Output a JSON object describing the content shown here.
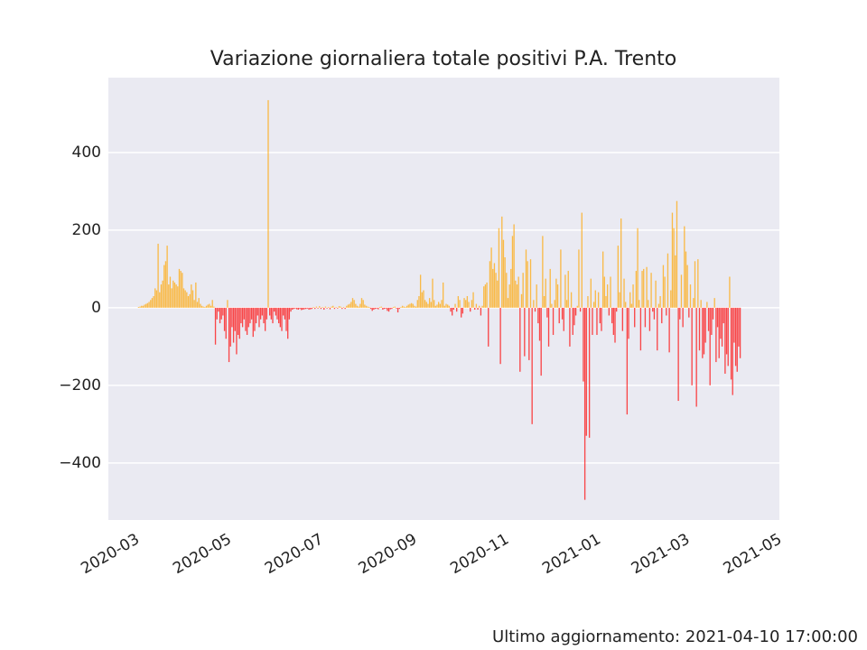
{
  "chart_data": {
    "type": "bar",
    "title": "Variazione giornaliera totale positivi P.A. Trento",
    "footnote": "Ultimo aggiornamento: 2021-04-10 17:00:00",
    "colors": {
      "positive": "#ffa500",
      "negative": "#ff0000"
    },
    "grid": true,
    "xlim": [
      "2020-02-16",
      "2021-05-06"
    ],
    "xticks": [
      {
        "value": "2020-03-01",
        "label": "2020-03"
      },
      {
        "value": "2020-05-01",
        "label": "2020-05"
      },
      {
        "value": "2020-07-01",
        "label": "2020-07"
      },
      {
        "value": "2020-09-01",
        "label": "2020-09"
      },
      {
        "value": "2020-11-01",
        "label": "2020-11"
      },
      {
        "value": "2021-01-01",
        "label": "2021-01"
      },
      {
        "value": "2021-03-01",
        "label": "2021-03"
      },
      {
        "value": "2021-05-01",
        "label": "2021-05"
      }
    ],
    "ylim": [
      -547,
      593
    ],
    "yticks": [
      {
        "value": -400,
        "label": "−400"
      },
      {
        "value": -200,
        "label": "−200"
      },
      0,
      200,
      400
    ],
    "x": [
      "2020-03-07",
      "2020-03-08",
      "2020-03-09",
      "2020-03-10",
      "2020-03-11",
      "2020-03-12",
      "2020-03-13",
      "2020-03-14",
      "2020-03-15",
      "2020-03-16",
      "2020-03-17",
      "2020-03-18",
      "2020-03-19",
      "2020-03-20",
      "2020-03-21",
      "2020-03-22",
      "2020-03-23",
      "2020-03-24",
      "2020-03-25",
      "2020-03-26",
      "2020-03-27",
      "2020-03-28",
      "2020-03-29",
      "2020-03-30",
      "2020-03-31",
      "2020-04-01",
      "2020-04-02",
      "2020-04-03",
      "2020-04-04",
      "2020-04-05",
      "2020-04-06",
      "2020-04-07",
      "2020-04-08",
      "2020-04-09",
      "2020-04-10",
      "2020-04-11",
      "2020-04-12",
      "2020-04-13",
      "2020-04-14",
      "2020-04-15",
      "2020-04-16",
      "2020-04-17",
      "2020-04-18",
      "2020-04-19",
      "2020-04-20",
      "2020-04-21",
      "2020-04-22",
      "2020-04-23",
      "2020-04-24",
      "2020-04-25",
      "2020-04-26",
      "2020-04-27",
      "2020-04-28",
      "2020-04-29",
      "2020-04-30",
      "2020-05-01",
      "2020-05-02",
      "2020-05-03",
      "2020-05-04",
      "2020-05-05",
      "2020-05-06",
      "2020-05-07",
      "2020-05-08",
      "2020-05-09",
      "2020-05-10",
      "2020-05-11",
      "2020-05-12",
      "2020-05-13",
      "2020-05-14",
      "2020-05-15",
      "2020-05-16",
      "2020-05-17",
      "2020-05-18",
      "2020-05-19",
      "2020-05-20",
      "2020-05-21",
      "2020-05-22",
      "2020-05-23",
      "2020-05-24",
      "2020-05-25",
      "2020-05-26",
      "2020-05-27",
      "2020-05-28",
      "2020-05-29",
      "2020-05-30",
      "2020-05-31",
      "2020-06-01",
      "2020-06-02",
      "2020-06-03",
      "2020-06-04",
      "2020-06-05",
      "2020-06-06",
      "2020-06-07",
      "2020-06-08",
      "2020-06-09",
      "2020-06-10",
      "2020-06-11",
      "2020-06-12",
      "2020-06-13",
      "2020-06-14",
      "2020-06-15",
      "2020-06-16",
      "2020-06-17",
      "2020-06-18",
      "2020-06-19",
      "2020-06-20",
      "2020-06-21",
      "2020-06-22",
      "2020-06-23",
      "2020-06-24",
      "2020-06-25",
      "2020-06-26",
      "2020-06-27",
      "2020-06-28",
      "2020-06-29",
      "2020-06-30",
      "2020-07-01",
      "2020-07-02",
      "2020-07-03",
      "2020-07-04",
      "2020-07-05",
      "2020-07-06",
      "2020-07-07",
      "2020-07-08",
      "2020-07-09",
      "2020-07-10",
      "2020-07-11",
      "2020-07-12",
      "2020-07-13",
      "2020-07-14",
      "2020-07-15",
      "2020-07-16",
      "2020-07-17",
      "2020-07-18",
      "2020-07-19",
      "2020-07-20",
      "2020-07-21",
      "2020-07-22",
      "2020-07-23",
      "2020-07-24",
      "2020-07-25",
      "2020-07-26",
      "2020-07-27",
      "2020-07-28",
      "2020-07-29",
      "2020-07-30",
      "2020-07-31",
      "2020-08-01",
      "2020-08-02",
      "2020-08-03",
      "2020-08-04",
      "2020-08-05",
      "2020-08-06",
      "2020-08-07",
      "2020-08-08",
      "2020-08-09",
      "2020-08-10",
      "2020-08-11",
      "2020-08-12",
      "2020-08-13",
      "2020-08-14",
      "2020-08-15",
      "2020-08-16",
      "2020-08-17",
      "2020-08-18",
      "2020-08-19",
      "2020-08-20",
      "2020-08-21",
      "2020-08-22",
      "2020-08-23",
      "2020-08-24",
      "2020-08-25",
      "2020-08-26",
      "2020-08-27",
      "2020-08-28",
      "2020-08-29",
      "2020-08-30",
      "2020-08-31",
      "2020-09-01",
      "2020-09-02",
      "2020-09-03",
      "2020-09-04",
      "2020-09-05",
      "2020-09-06",
      "2020-09-07",
      "2020-09-08",
      "2020-09-09",
      "2020-09-10",
      "2020-09-11",
      "2020-09-12",
      "2020-09-13",
      "2020-09-14",
      "2020-09-15",
      "2020-09-16",
      "2020-09-17",
      "2020-09-18",
      "2020-09-19",
      "2020-09-20",
      "2020-09-21",
      "2020-09-22",
      "2020-09-23",
      "2020-09-24",
      "2020-09-25",
      "2020-09-26",
      "2020-09-27",
      "2020-09-28",
      "2020-09-29",
      "2020-09-30",
      "2020-10-01",
      "2020-10-02",
      "2020-10-03",
      "2020-10-04",
      "2020-10-05",
      "2020-10-06",
      "2020-10-07",
      "2020-10-08",
      "2020-10-09",
      "2020-10-10",
      "2020-10-11",
      "2020-10-12",
      "2020-10-13",
      "2020-10-14",
      "2020-10-15",
      "2020-10-16",
      "2020-10-17",
      "2020-10-18",
      "2020-10-19",
      "2020-10-20",
      "2020-10-21",
      "2020-10-22",
      "2020-10-23",
      "2020-10-24",
      "2020-10-25",
      "2020-10-26",
      "2020-10-27",
      "2020-10-28",
      "2020-10-29",
      "2020-10-30",
      "2020-10-31",
      "2020-11-01",
      "2020-11-02",
      "2020-11-03",
      "2020-11-04",
      "2020-11-05",
      "2020-11-06",
      "2020-11-07",
      "2020-11-08",
      "2020-11-09",
      "2020-11-10",
      "2020-11-11",
      "2020-11-12",
      "2020-11-13",
      "2020-11-14",
      "2020-11-15",
      "2020-11-16",
      "2020-11-17",
      "2020-11-18",
      "2020-11-19",
      "2020-11-20",
      "2020-11-21",
      "2020-11-22",
      "2020-11-23",
      "2020-11-24",
      "2020-11-25",
      "2020-11-26",
      "2020-11-27",
      "2020-11-28",
      "2020-11-29",
      "2020-11-30",
      "2020-12-01",
      "2020-12-02",
      "2020-12-03",
      "2020-12-04",
      "2020-12-05",
      "2020-12-06",
      "2020-12-07",
      "2020-12-08",
      "2020-12-09",
      "2020-12-10",
      "2020-12-11",
      "2020-12-12",
      "2020-12-13",
      "2020-12-14",
      "2020-12-15",
      "2020-12-16",
      "2020-12-17",
      "2020-12-18",
      "2020-12-19",
      "2020-12-20",
      "2020-12-21",
      "2020-12-22",
      "2020-12-23",
      "2020-12-24",
      "2020-12-25",
      "2020-12-26",
      "2020-12-27",
      "2020-12-28",
      "2020-12-29",
      "2020-12-30",
      "2020-12-31",
      "2021-01-01",
      "2021-01-02",
      "2021-01-03",
      "2021-01-04",
      "2021-01-05",
      "2021-01-06",
      "2021-01-07",
      "2021-01-08",
      "2021-01-09",
      "2021-01-10",
      "2021-01-11",
      "2021-01-12",
      "2021-01-13",
      "2021-01-14",
      "2021-01-15",
      "2021-01-16",
      "2021-01-17",
      "2021-01-18",
      "2021-01-19",
      "2021-01-20",
      "2021-01-21",
      "2021-01-22",
      "2021-01-23",
      "2021-01-24",
      "2021-01-25",
      "2021-01-26",
      "2021-01-27",
      "2021-01-28",
      "2021-01-29",
      "2021-01-30",
      "2021-01-31",
      "2021-02-01",
      "2021-02-02",
      "2021-02-03",
      "2021-02-04",
      "2021-02-05",
      "2021-02-06",
      "2021-02-07",
      "2021-02-08",
      "2021-02-09",
      "2021-02-10",
      "2021-02-11",
      "2021-02-12",
      "2021-02-13",
      "2021-02-14",
      "2021-02-15",
      "2021-02-16",
      "2021-02-17",
      "2021-02-18",
      "2021-02-19",
      "2021-02-20",
      "2021-02-21",
      "2021-02-22",
      "2021-02-23",
      "2021-02-24",
      "2021-02-25",
      "2021-02-26",
      "2021-02-27",
      "2021-02-28",
      "2021-03-01",
      "2021-03-02",
      "2021-03-03",
      "2021-03-04",
      "2021-03-05",
      "2021-03-06",
      "2021-03-07",
      "2021-03-08",
      "2021-03-09",
      "2021-03-10",
      "2021-03-11",
      "2021-03-12",
      "2021-03-13",
      "2021-03-14",
      "2021-03-15",
      "2021-03-16",
      "2021-03-17",
      "2021-03-18",
      "2021-03-19",
      "2021-03-20",
      "2021-03-21",
      "2021-03-22",
      "2021-03-23",
      "2021-03-24",
      "2021-03-25",
      "2021-03-26",
      "2021-03-27",
      "2021-03-28",
      "2021-03-29",
      "2021-03-30",
      "2021-03-31",
      "2021-04-01",
      "2021-04-02",
      "2021-04-03",
      "2021-04-04",
      "2021-04-05",
      "2021-04-06",
      "2021-04-07",
      "2021-04-08",
      "2021-04-09",
      "2021-04-10"
    ],
    "values": [
      2,
      3,
      5,
      5,
      8,
      10,
      12,
      15,
      20,
      25,
      30,
      50,
      45,
      165,
      40,
      60,
      70,
      110,
      120,
      160,
      60,
      80,
      50,
      70,
      65,
      60,
      55,
      100,
      95,
      90,
      50,
      45,
      40,
      30,
      35,
      60,
      45,
      20,
      65,
      15,
      25,
      10,
      5,
      3,
      2,
      5,
      8,
      10,
      5,
      20,
      3,
      -95,
      -30,
      -10,
      -40,
      -30,
      -20,
      -60,
      -80,
      20,
      -140,
      -100,
      -50,
      -90,
      -60,
      -120,
      -70,
      -80,
      -40,
      -50,
      -30,
      -60,
      -70,
      -50,
      -40,
      -30,
      -75,
      -60,
      -40,
      -20,
      -50,
      -30,
      -20,
      -40,
      -60,
      -30,
      535,
      -20,
      -30,
      -40,
      -10,
      -20,
      -30,
      -40,
      -50,
      -60,
      -20,
      -30,
      -60,
      -80,
      -30,
      -10,
      -5,
      -3,
      -2,
      -4,
      -5,
      -3,
      -6,
      -5,
      -4,
      -3,
      -2,
      -5,
      -4,
      -3,
      2,
      -3,
      3,
      -2,
      4,
      -3,
      2,
      -5,
      3,
      -2,
      2,
      -4,
      3,
      5,
      -3,
      2,
      -2,
      4,
      3,
      -3,
      2,
      -3,
      5,
      8,
      10,
      15,
      25,
      20,
      10,
      5,
      3,
      10,
      25,
      20,
      8,
      5,
      3,
      2,
      -3,
      -8,
      -5,
      -3,
      -2,
      -4,
      2,
      3,
      -5,
      -3,
      -2,
      -8,
      -10,
      -4,
      -3,
      2,
      3,
      -2,
      -12,
      -3,
      2,
      5,
      3,
      2,
      5,
      8,
      10,
      12,
      10,
      5,
      3,
      20,
      30,
      85,
      40,
      45,
      20,
      15,
      10,
      25,
      15,
      75,
      20,
      5,
      8,
      15,
      10,
      20,
      65,
      5,
      10,
      8,
      5,
      -10,
      -20,
      -5,
      10,
      -10,
      30,
      20,
      -25,
      -15,
      25,
      20,
      30,
      15,
      -10,
      20,
      40,
      -5,
      10,
      -5,
      5,
      -20,
      5,
      55,
      60,
      65,
      -100,
      120,
      155,
      100,
      115,
      90,
      70,
      205,
      -145,
      235,
      175,
      130,
      90,
      25,
      60,
      100,
      185,
      215,
      70,
      60,
      80,
      -165,
      35,
      90,
      -125,
      150,
      120,
      -135,
      125,
      -300,
      20,
      -10,
      60,
      -40,
      -85,
      -175,
      185,
      30,
      75,
      -25,
      -100,
      100,
      10,
      -70,
      20,
      75,
      60,
      -40,
      150,
      -30,
      -60,
      85,
      20,
      95,
      -100,
      40,
      -70,
      -45,
      -20,
      5,
      150,
      -10,
      245,
      -190,
      -495,
      -330,
      30,
      -335,
      75,
      -70,
      15,
      45,
      -70,
      40,
      -40,
      -60,
      145,
      80,
      30,
      60,
      -20,
      80,
      -40,
      -70,
      -90,
      -10,
      160,
      40,
      230,
      -60,
      75,
      15,
      -275,
      -80,
      40,
      10,
      60,
      -50,
      95,
      205,
      20,
      -110,
      95,
      100,
      -50,
      105,
      20,
      -60,
      90,
      -10,
      -30,
      70,
      -110,
      10,
      30,
      -40,
      110,
      80,
      -20,
      140,
      -115,
      45,
      245,
      205,
      135,
      275,
      -240,
      -30,
      85,
      -50,
      210,
      145,
      110,
      -25,
      60,
      -200,
      25,
      120,
      -255,
      125,
      -110,
      20,
      -130,
      -120,
      -90,
      15,
      -60,
      -200,
      -70,
      -30,
      25,
      -140,
      -50,
      -130,
      -80,
      -100,
      -40,
      -170,
      -120,
      -150,
      80,
      -185,
      -225,
      -90,
      -150,
      -165,
      -100,
      -130
    ]
  }
}
